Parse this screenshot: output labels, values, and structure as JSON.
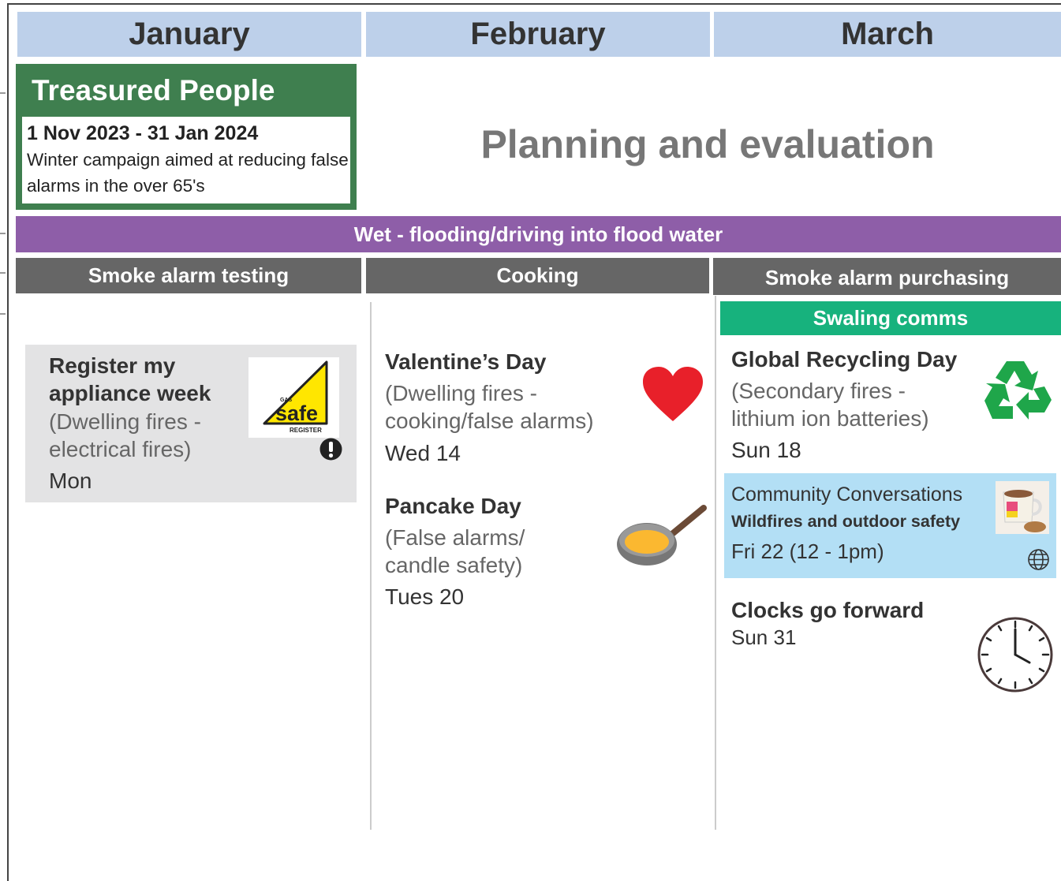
{
  "months": [
    "January",
    "February",
    "March"
  ],
  "campaign": {
    "title": "Treasured People",
    "dates": "1 Nov 2023 - 31 Jan 2024",
    "description": "Winter campaign aimed at reducing false alarms in the over 65's"
  },
  "planning": "Planning and evaluation",
  "banner": "Wet - flooding/driving into flood water",
  "themes": [
    "Smoke alarm testing",
    "Cooking",
    "Smoke alarm purchasing"
  ],
  "swaling": "Swaling comms",
  "logo": {
    "top": "GAS",
    "brand": "safe",
    "bottom": "REGISTER"
  },
  "events": [
    {
      "title": "Register my appliance week",
      "detail": "(Dwelling fires - electrical fires)",
      "date": "Mon"
    },
    {
      "title": "Valentine’s Day",
      "detail": "(Dwelling fires - cooking/false alarms)",
      "date": "Wed 14"
    },
    {
      "title": "Pancake Day",
      "detail": "(False alarms/ candle safety)",
      "date": "Tues 20"
    },
    {
      "title": "Global Recycling Day",
      "detail": "(Secondary fires - lithium ion batteries)",
      "date": "Sun 18"
    },
    {
      "title": "Community Conversations",
      "subtitle": "Wildfires and outdoor safety",
      "date": "Fri 22 (12 - 1pm)"
    },
    {
      "title": "Clocks go forward",
      "date": "Sun 31"
    }
  ]
}
